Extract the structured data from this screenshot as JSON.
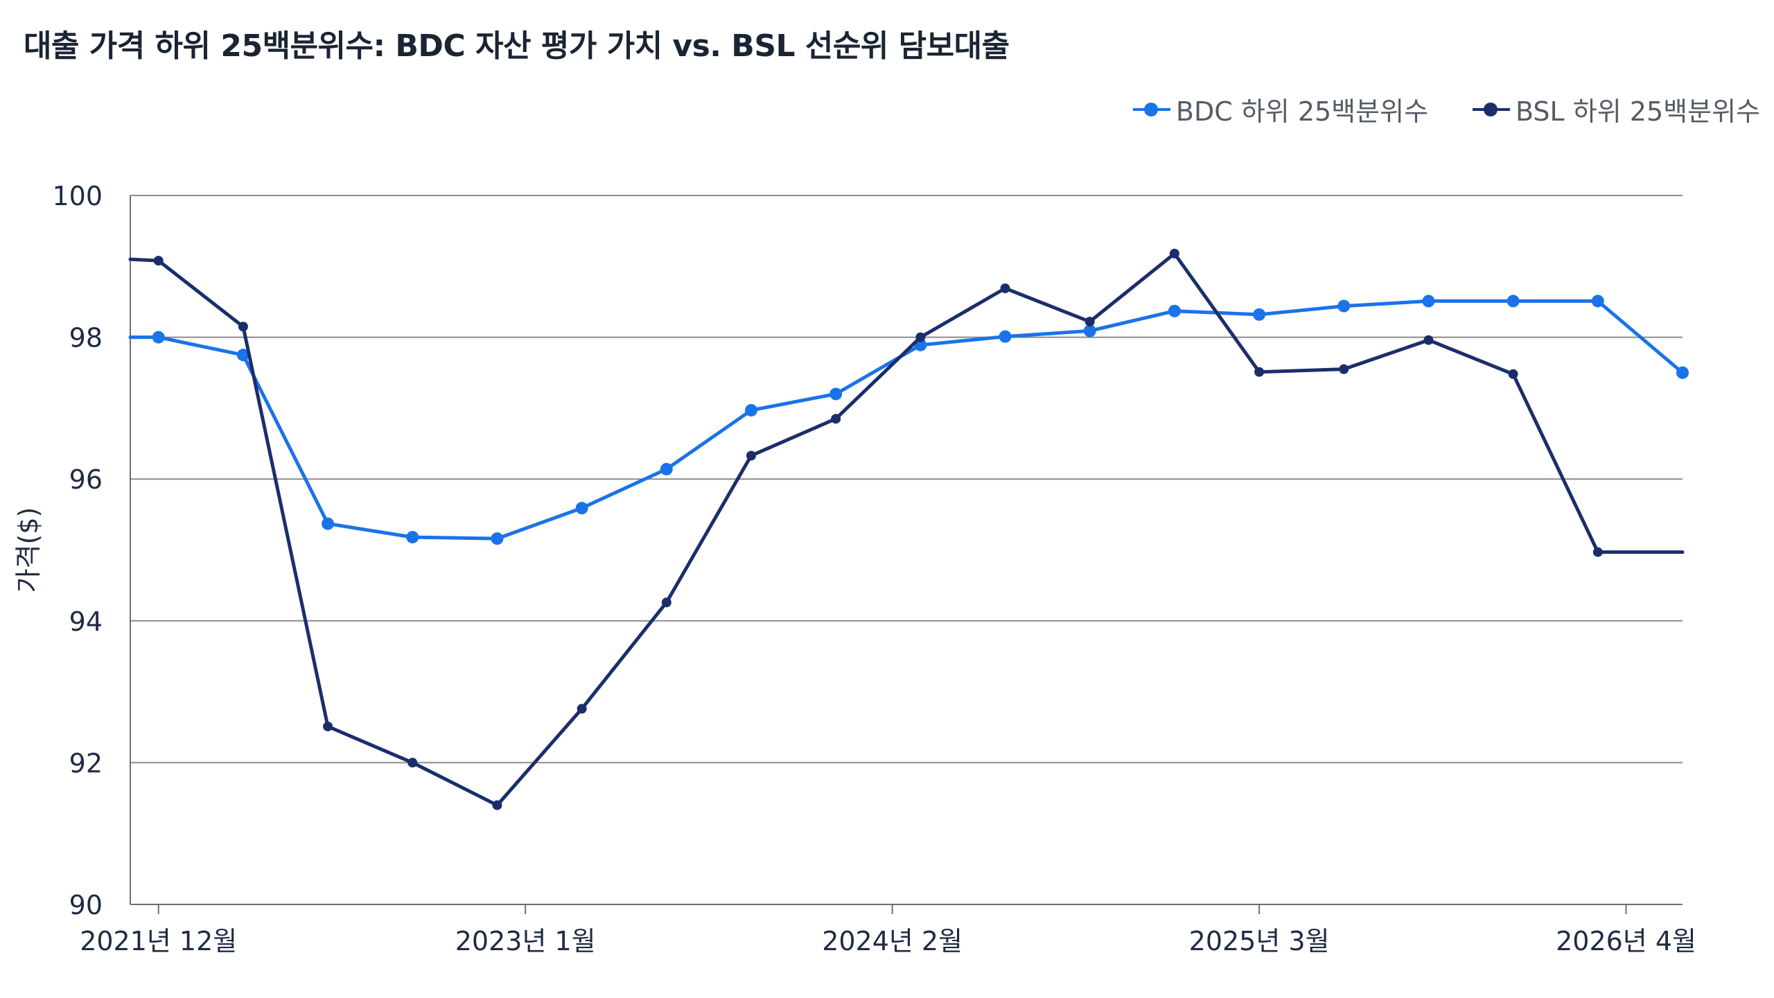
{
  "chart_data": {
    "type": "line",
    "title": "대출 가격 하위 25백분위수: BDC 자산 평가 가치 vs. BSL 선순위 담보대출",
    "ylabel": "가격($)",
    "xlabel": "",
    "ylim": [
      90,
      100
    ],
    "yticks": [
      "90",
      "92",
      "94",
      "96",
      "98",
      "100"
    ],
    "x_tick_labels": [
      "2021년 12월",
      "2023년 1월",
      "2024년 2월",
      "2025년 3월",
      "2026년 4월"
    ],
    "x_tick_months": [
      0,
      13,
      26,
      39,
      52
    ],
    "x_range_months": [
      -1,
      54
    ],
    "grid": "horizontal",
    "legend_position": "top-right",
    "series": [
      {
        "name": "BDC 하위 25백분위수",
        "color": "#1a73e8",
        "x_months": [
          -1,
          0,
          3,
          6,
          9,
          12,
          15,
          18,
          21,
          24,
          27,
          30,
          33,
          36,
          39,
          42,
          45,
          48,
          51,
          54
        ],
        "values": [
          98.0,
          98.0,
          97.75,
          95.37,
          95.18,
          95.16,
          95.59,
          96.14,
          96.97,
          97.2,
          97.89,
          98.01,
          98.09,
          98.37,
          98.32,
          98.44,
          98.51,
          98.51,
          98.51,
          97.5
        ],
        "markers": [
          false,
          true,
          true,
          true,
          true,
          true,
          true,
          true,
          true,
          true,
          true,
          true,
          true,
          true,
          true,
          true,
          true,
          true,
          true,
          true
        ]
      },
      {
        "name": "BSL 하위 25백분위수",
        "color": "#1b2e6b",
        "x_months": [
          -1,
          0,
          3,
          6,
          9,
          12,
          15,
          18,
          21,
          24,
          27,
          30,
          33,
          36,
          39,
          42,
          45,
          48,
          51,
          54
        ],
        "values": [
          99.1,
          99.08,
          98.15,
          92.51,
          92.0,
          91.4,
          92.76,
          94.26,
          96.33,
          96.85,
          98.0,
          98.69,
          98.22,
          99.18,
          97.51,
          97.55,
          97.96,
          97.48,
          94.97,
          94.97
        ],
        "markers": [
          false,
          true,
          true,
          true,
          true,
          true,
          true,
          true,
          true,
          true,
          true,
          true,
          true,
          true,
          true,
          true,
          true,
          true,
          true,
          false
        ]
      }
    ]
  }
}
